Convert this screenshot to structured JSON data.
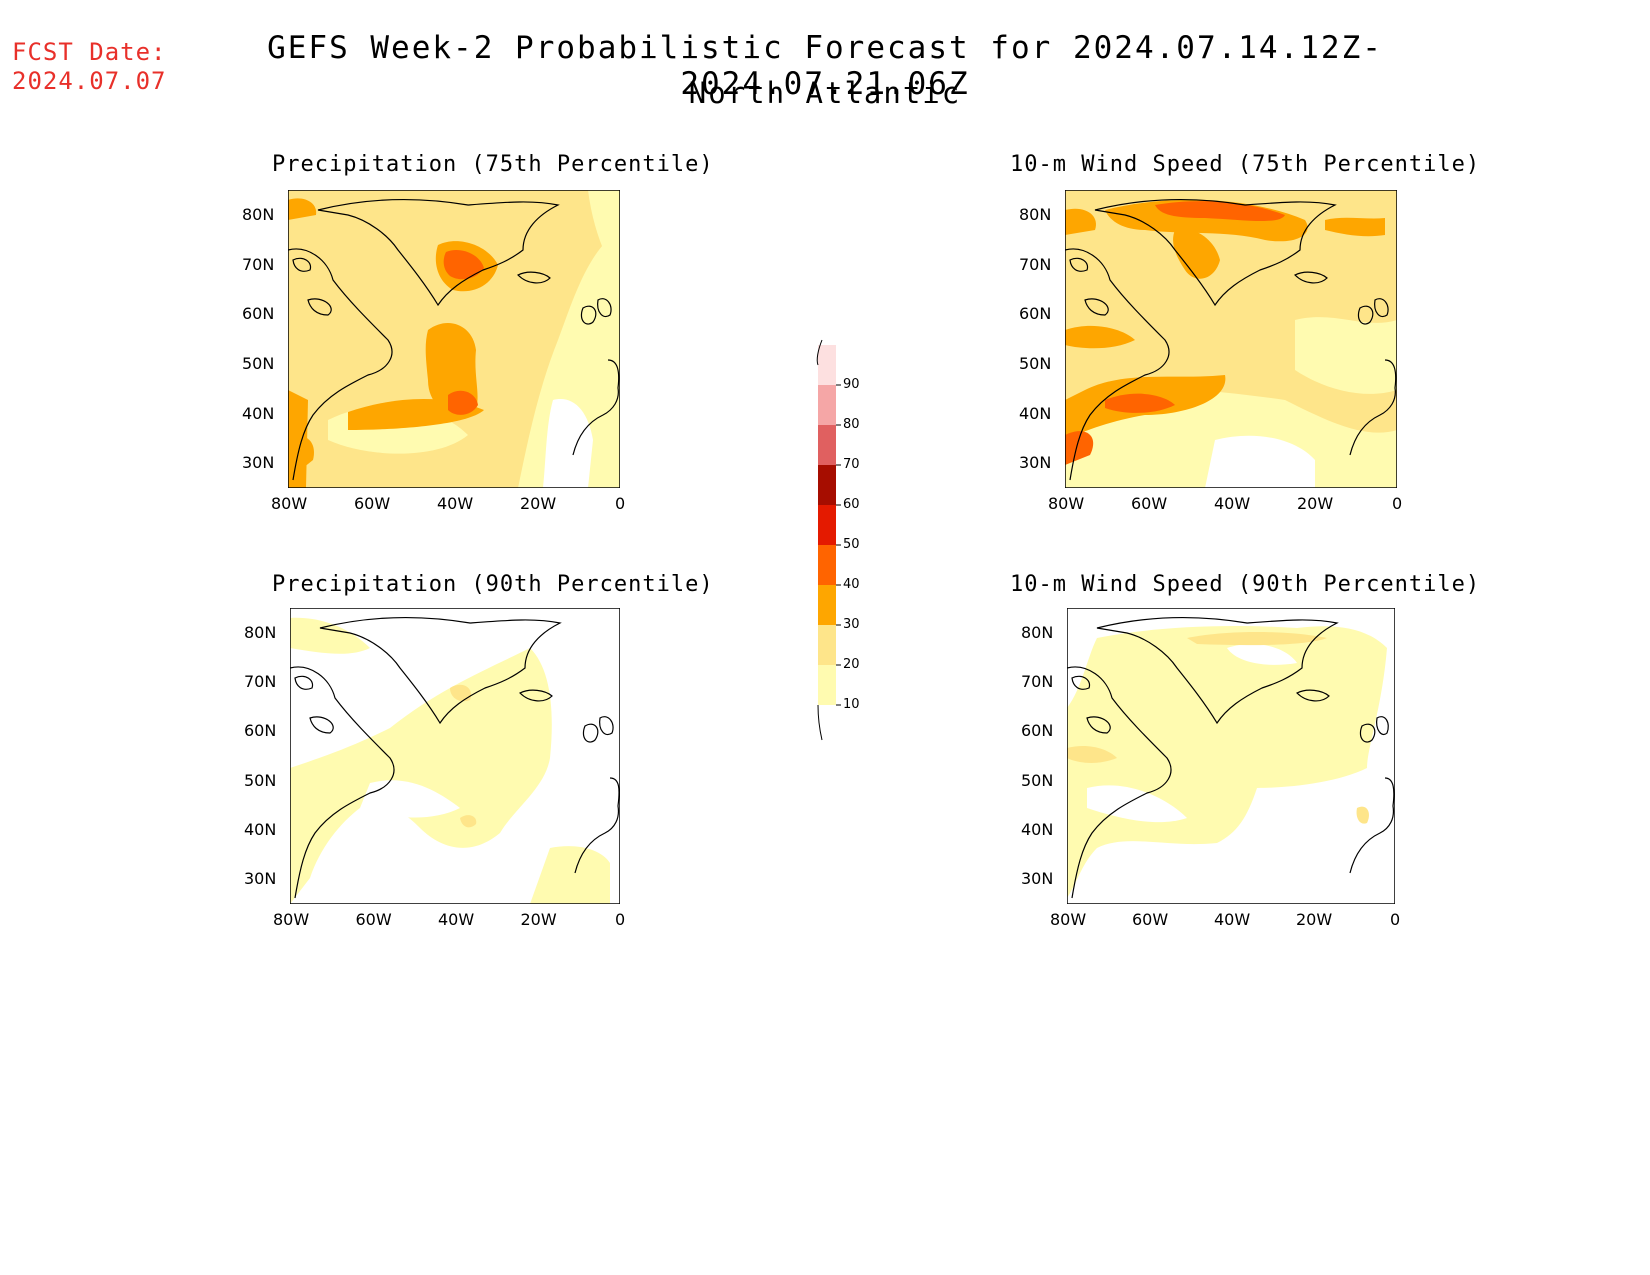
{
  "header": {
    "fcst_label": "FCST Date:",
    "fcst_date": "2024.07.07",
    "title": "GEFS Week-2 Probabilistic Forecast for 2024.07.14.12Z-2024.07.21.06Z",
    "subtitle": "North Atlantic"
  },
  "lat_labels": [
    "80N",
    "70N",
    "60N",
    "50N",
    "40N",
    "30N"
  ],
  "lon_labels": [
    "80W",
    "60W",
    "40W",
    "20W",
    "0"
  ],
  "colorbar": {
    "levels": [
      "10",
      "20",
      "30",
      "40",
      "50",
      "60",
      "70",
      "80",
      "90"
    ],
    "colors": [
      "#fffbb0",
      "#fee58a",
      "#fea600",
      "#ff6400",
      "#e41a00",
      "#a60d00",
      "#e06060",
      "#f5a6a6",
      "#fde0e0"
    ]
  },
  "panels": [
    {
      "title": "Precipitation (75th Percentile)"
    },
    {
      "title": "10-m Wind Speed (75th Percentile)"
    },
    {
      "title": "Precipitation (90th Percentile)"
    },
    {
      "title": "10-m Wind Speed (90th Percentile)"
    }
  ]
}
